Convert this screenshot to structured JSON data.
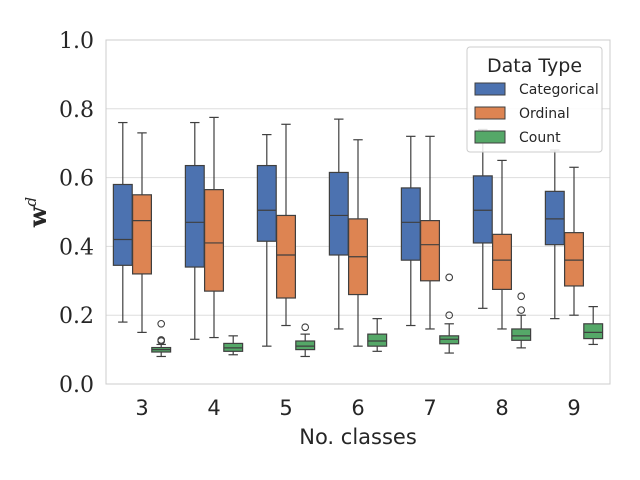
{
  "chart_data": {
    "type": "box",
    "xlabel": "No. classes",
    "ylabel": "w",
    "ylabel_superscript": "d",
    "ylim": [
      0.0,
      1.0
    ],
    "yticks": [
      "0.0",
      "0.2",
      "0.4",
      "0.6",
      "0.8",
      "1.0"
    ],
    "categories": [
      "3",
      "4",
      "5",
      "6",
      "7",
      "8",
      "9"
    ],
    "grid": "horizontal",
    "legend": {
      "title": "Data Type",
      "placement": "top-right"
    },
    "series": [
      {
        "name": "Categorical",
        "color": "#4c72b0",
        "boxes": [
          {
            "whislo": 0.18,
            "q1": 0.345,
            "med": 0.42,
            "q3": 0.58,
            "whishi": 0.76,
            "fliers": []
          },
          {
            "whislo": 0.13,
            "q1": 0.34,
            "med": 0.47,
            "q3": 0.635,
            "whishi": 0.76,
            "fliers": []
          },
          {
            "whislo": 0.11,
            "q1": 0.415,
            "med": 0.505,
            "q3": 0.635,
            "whishi": 0.725,
            "fliers": []
          },
          {
            "whislo": 0.16,
            "q1": 0.375,
            "med": 0.49,
            "q3": 0.615,
            "whishi": 0.77,
            "fliers": []
          },
          {
            "whislo": 0.17,
            "q1": 0.36,
            "med": 0.47,
            "q3": 0.57,
            "whishi": 0.72,
            "fliers": []
          },
          {
            "whislo": 0.22,
            "q1": 0.41,
            "med": 0.505,
            "q3": 0.605,
            "whishi": 0.74,
            "fliers": []
          },
          {
            "whislo": 0.19,
            "q1": 0.405,
            "med": 0.48,
            "q3": 0.56,
            "whishi": 0.68,
            "fliers": []
          }
        ]
      },
      {
        "name": "Ordinal",
        "color": "#dd8452",
        "boxes": [
          {
            "whislo": 0.15,
            "q1": 0.32,
            "med": 0.475,
            "q3": 0.55,
            "whishi": 0.73,
            "fliers": []
          },
          {
            "whislo": 0.135,
            "q1": 0.27,
            "med": 0.41,
            "q3": 0.565,
            "whishi": 0.775,
            "fliers": []
          },
          {
            "whislo": 0.17,
            "q1": 0.25,
            "med": 0.375,
            "q3": 0.49,
            "whishi": 0.755,
            "fliers": []
          },
          {
            "whislo": 0.11,
            "q1": 0.26,
            "med": 0.37,
            "q3": 0.48,
            "whishi": 0.71,
            "fliers": []
          },
          {
            "whislo": 0.16,
            "q1": 0.3,
            "med": 0.405,
            "q3": 0.475,
            "whishi": 0.72,
            "fliers": []
          },
          {
            "whislo": 0.16,
            "q1": 0.275,
            "med": 0.36,
            "q3": 0.435,
            "whishi": 0.65,
            "fliers": []
          },
          {
            "whislo": 0.2,
            "q1": 0.285,
            "med": 0.36,
            "q3": 0.44,
            "whishi": 0.63,
            "fliers": []
          }
        ]
      },
      {
        "name": "Count",
        "color": "#55a868",
        "boxes": [
          {
            "whislo": 0.08,
            "q1": 0.093,
            "med": 0.1,
            "q3": 0.106,
            "whishi": 0.115,
            "fliers": [
              0.128,
              0.125,
              0.175
            ]
          },
          {
            "whislo": 0.085,
            "q1": 0.095,
            "med": 0.105,
            "q3": 0.118,
            "whishi": 0.14,
            "fliers": []
          },
          {
            "whislo": 0.08,
            "q1": 0.1,
            "med": 0.11,
            "q3": 0.125,
            "whishi": 0.145,
            "fliers": [
              0.165
            ]
          },
          {
            "whislo": 0.095,
            "q1": 0.11,
            "med": 0.125,
            "q3": 0.145,
            "whishi": 0.19,
            "fliers": []
          },
          {
            "whislo": 0.09,
            "q1": 0.117,
            "med": 0.13,
            "q3": 0.14,
            "whishi": 0.175,
            "fliers": [
              0.2,
              0.31
            ]
          },
          {
            "whislo": 0.105,
            "q1": 0.127,
            "med": 0.14,
            "q3": 0.16,
            "whishi": 0.2,
            "fliers": [
              0.215,
              0.255
            ]
          },
          {
            "whislo": 0.115,
            "q1": 0.132,
            "med": 0.15,
            "q3": 0.175,
            "whishi": 0.225,
            "fliers": []
          }
        ]
      }
    ]
  }
}
